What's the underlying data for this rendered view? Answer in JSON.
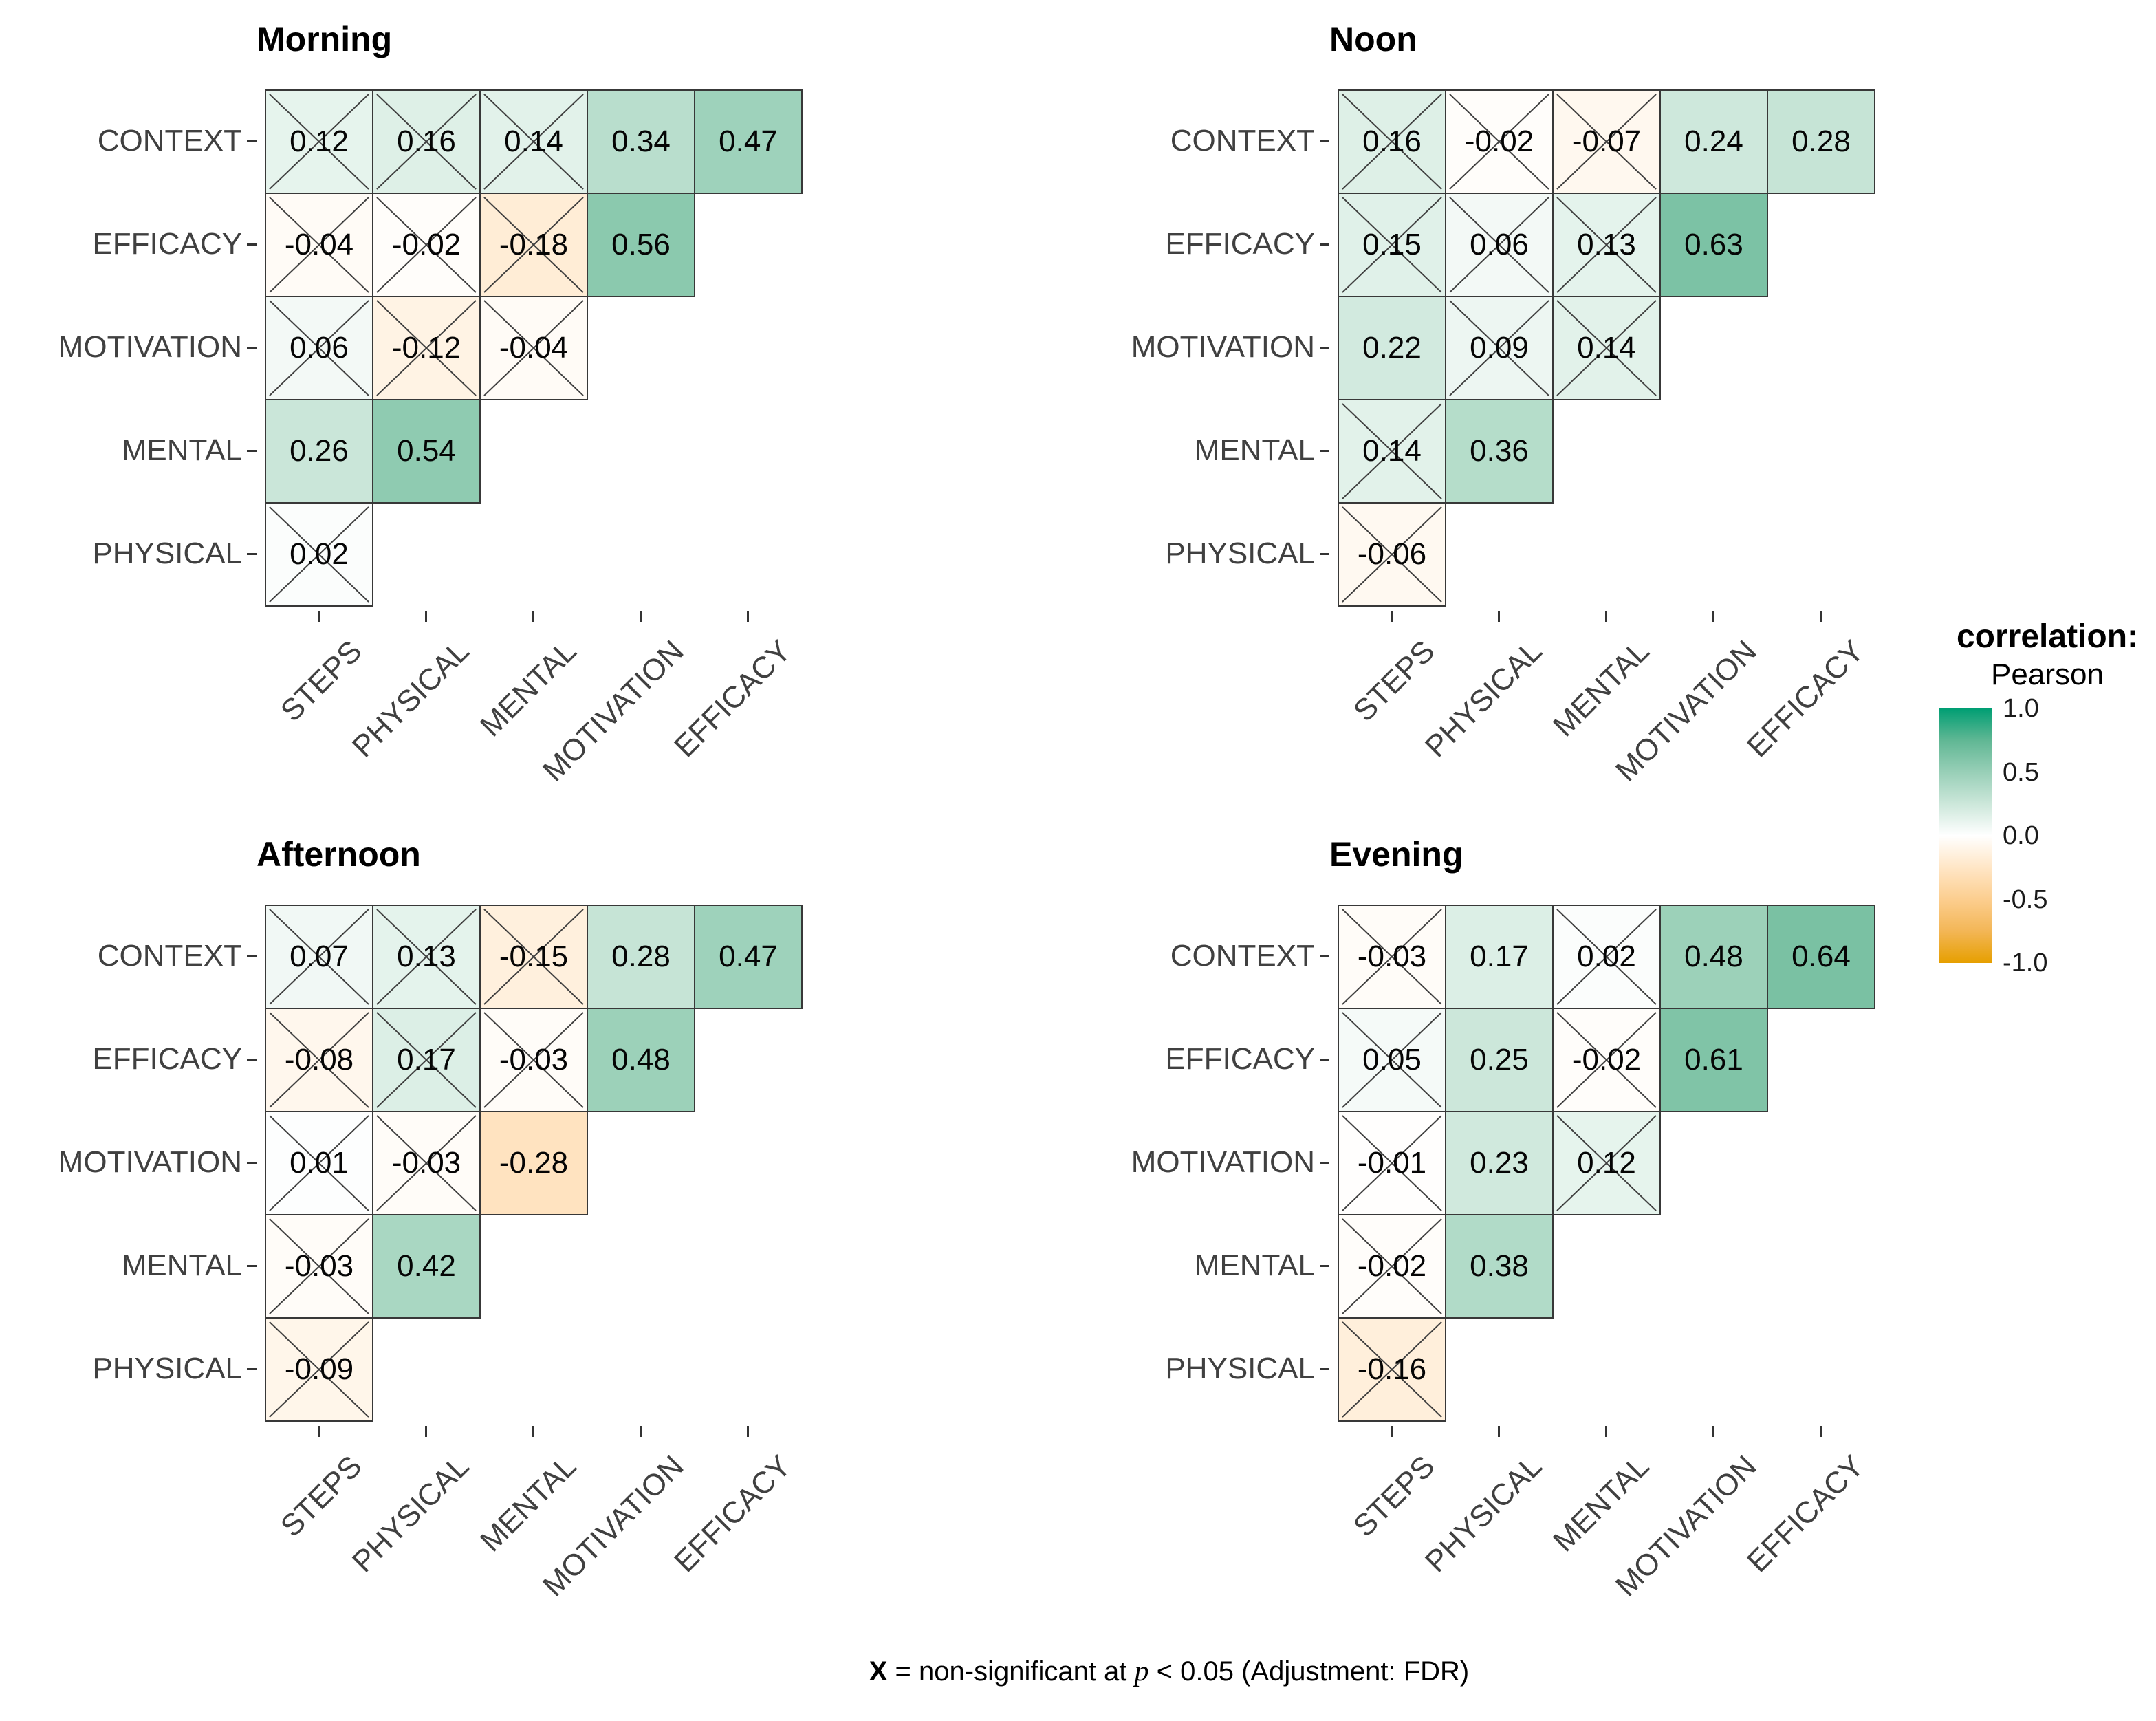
{
  "chart_data": {
    "type": "heatmap",
    "subtype": "lower-triangular correlation matrices, 2x2 panel grid",
    "rows": [
      "CONTEXT",
      "EFFICACY",
      "MOTIVATION",
      "MENTAL",
      "PHYSICAL"
    ],
    "cols": [
      "STEPS",
      "PHYSICAL",
      "MENTAL",
      "MOTIVATION",
      "EFFICACY"
    ],
    "value_range": [
      -1,
      1
    ],
    "panels": [
      {
        "title": "Morning",
        "cells": [
          [
            {
              "v": 0.12,
              "ns": true
            },
            {
              "v": 0.16,
              "ns": true
            },
            {
              "v": 0.14,
              "ns": true
            },
            {
              "v": 0.34,
              "ns": false
            },
            {
              "v": 0.47,
              "ns": false
            }
          ],
          [
            {
              "v": -0.04,
              "ns": true
            },
            {
              "v": -0.02,
              "ns": true
            },
            {
              "v": -0.18,
              "ns": true
            },
            {
              "v": 0.56,
              "ns": false
            }
          ],
          [
            {
              "v": 0.06,
              "ns": true
            },
            {
              "v": -0.12,
              "ns": true
            },
            {
              "v": -0.04,
              "ns": true
            }
          ],
          [
            {
              "v": 0.26,
              "ns": false
            },
            {
              "v": 0.54,
              "ns": false
            }
          ],
          [
            {
              "v": 0.02,
              "ns": true
            }
          ]
        ]
      },
      {
        "title": "Noon",
        "cells": [
          [
            {
              "v": 0.16,
              "ns": true
            },
            {
              "v": -0.02,
              "ns": true
            },
            {
              "v": -0.07,
              "ns": true
            },
            {
              "v": 0.24,
              "ns": false
            },
            {
              "v": 0.28,
              "ns": false
            }
          ],
          [
            {
              "v": 0.15,
              "ns": true
            },
            {
              "v": 0.06,
              "ns": true
            },
            {
              "v": 0.13,
              "ns": true
            },
            {
              "v": 0.63,
              "ns": false
            }
          ],
          [
            {
              "v": 0.22,
              "ns": false
            },
            {
              "v": 0.09,
              "ns": true
            },
            {
              "v": 0.14,
              "ns": true
            }
          ],
          [
            {
              "v": 0.14,
              "ns": true
            },
            {
              "v": 0.36,
              "ns": false
            }
          ],
          [
            {
              "v": -0.06,
              "ns": true
            }
          ]
        ]
      },
      {
        "title": "Afternoon",
        "cells": [
          [
            {
              "v": 0.07,
              "ns": true
            },
            {
              "v": 0.13,
              "ns": true
            },
            {
              "v": -0.15,
              "ns": true
            },
            {
              "v": 0.28,
              "ns": false
            },
            {
              "v": 0.47,
              "ns": false
            }
          ],
          [
            {
              "v": -0.08,
              "ns": true
            },
            {
              "v": 0.17,
              "ns": true
            },
            {
              "v": -0.03,
              "ns": true
            },
            {
              "v": 0.48,
              "ns": false
            }
          ],
          [
            {
              "v": 0.01,
              "ns": true
            },
            {
              "v": -0.03,
              "ns": true
            },
            {
              "v": -0.28,
              "ns": false
            }
          ],
          [
            {
              "v": -0.03,
              "ns": true
            },
            {
              "v": 0.42,
              "ns": false
            }
          ],
          [
            {
              "v": -0.09,
              "ns": true
            }
          ]
        ]
      },
      {
        "title": "Evening",
        "cells": [
          [
            {
              "v": -0.03,
              "ns": true
            },
            {
              "v": 0.17,
              "ns": false
            },
            {
              "v": 0.02,
              "ns": true
            },
            {
              "v": 0.48,
              "ns": false
            },
            {
              "v": 0.64,
              "ns": false
            }
          ],
          [
            {
              "v": 0.05,
              "ns": true
            },
            {
              "v": 0.25,
              "ns": false
            },
            {
              "v": -0.02,
              "ns": true
            },
            {
              "v": 0.61,
              "ns": false
            }
          ],
          [
            {
              "v": -0.01,
              "ns": true
            },
            {
              "v": 0.23,
              "ns": false
            },
            {
              "v": 0.12,
              "ns": true
            }
          ],
          [
            {
              "v": -0.02,
              "ns": true
            },
            {
              "v": 0.38,
              "ns": false
            }
          ],
          [
            {
              "v": -0.16,
              "ns": true
            }
          ]
        ]
      }
    ],
    "legend": {
      "title_line1": "correlation:",
      "title_line2": "Pearson",
      "ticks": [
        {
          "label": "1.0",
          "value": 1.0
        },
        {
          "label": "0.5",
          "value": 0.5
        },
        {
          "label": "0.0",
          "value": 0.0
        },
        {
          "label": "-0.5",
          "value": -0.5
        },
        {
          "label": "-1.0",
          "value": -1.0
        }
      ]
    },
    "caption": {
      "x_symbol": "X",
      "mid": " = non-significant at ",
      "p_symbol": "p",
      "end": " < 0.05 (Adjustment: FDR)"
    },
    "colors": {
      "high": "#009E73",
      "mid": "#FFFFFF",
      "low": "#E69F00",
      "grid_border": "#383838",
      "axis_text": "#404040",
      "x_mark": "#3F3F3F"
    }
  }
}
